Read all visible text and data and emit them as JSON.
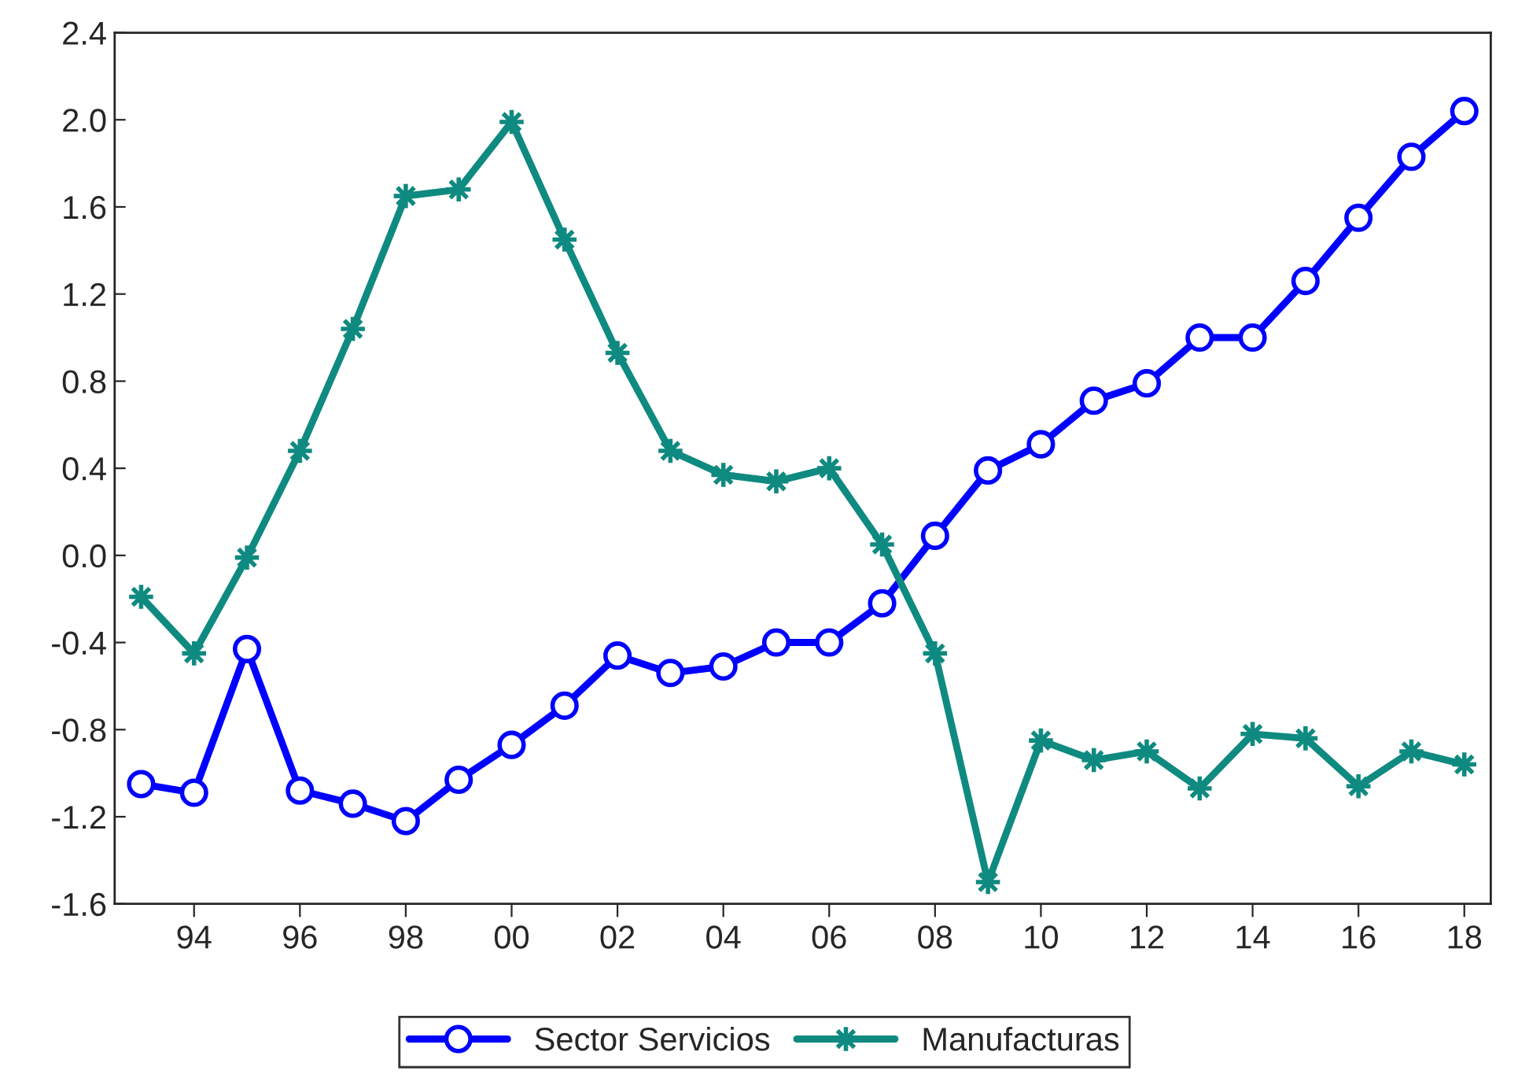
{
  "chart_data": {
    "type": "line",
    "x": [
      1993,
      1994,
      1995,
      1996,
      1997,
      1998,
      1999,
      2000,
      2001,
      2002,
      2003,
      2004,
      2005,
      2006,
      2007,
      2008,
      2009,
      2010,
      2011,
      2012,
      2013,
      2014,
      2015,
      2016,
      2017,
      2018
    ],
    "series": [
      {
        "name": "Sector Servicios",
        "color": "#0000ff",
        "marker": "circle",
        "values": [
          -1.05,
          -1.09,
          -0.43,
          -1.08,
          -1.14,
          -1.22,
          -1.03,
          -0.87,
          -0.69,
          -0.46,
          -0.54,
          -0.51,
          -0.4,
          -0.4,
          -0.22,
          0.09,
          0.39,
          0.51,
          0.71,
          0.79,
          1.0,
          1.0,
          1.26,
          1.55,
          1.83,
          2.04
        ]
      },
      {
        "name": "Manufacturas",
        "color": "#0f8a80",
        "marker": "star",
        "values": [
          -0.19,
          -0.45,
          -0.01,
          0.48,
          1.04,
          1.65,
          1.68,
          1.99,
          1.45,
          0.93,
          0.48,
          0.37,
          0.34,
          0.4,
          0.05,
          -0.45,
          -1.5,
          -0.85,
          -0.94,
          -0.9,
          -1.07,
          -0.82,
          -0.84,
          -1.06,
          -0.9,
          -0.96
        ]
      }
    ],
    "xlim": [
      1992.5,
      2018.5
    ],
    "xticks": [
      {
        "value": 1994,
        "label": "94"
      },
      {
        "value": 1996,
        "label": "96"
      },
      {
        "value": 1998,
        "label": "98"
      },
      {
        "value": 2000,
        "label": "00"
      },
      {
        "value": 2002,
        "label": "02"
      },
      {
        "value": 2004,
        "label": "04"
      },
      {
        "value": 2006,
        "label": "06"
      },
      {
        "value": 2008,
        "label": "08"
      },
      {
        "value": 2010,
        "label": "10"
      },
      {
        "value": 2012,
        "label": "12"
      },
      {
        "value": 2014,
        "label": "14"
      },
      {
        "value": 2016,
        "label": "16"
      },
      {
        "value": 2018,
        "label": "18"
      }
    ],
    "ylim": [
      -1.6,
      2.4
    ],
    "yticks": [
      {
        "value": -1.6,
        "label": "-1.6"
      },
      {
        "value": -1.2,
        "label": "-1.2"
      },
      {
        "value": -0.8,
        "label": "-0.8"
      },
      {
        "value": -0.4,
        "label": "-0.4"
      },
      {
        "value": 0.0,
        "label": "0.0"
      },
      {
        "value": 0.4,
        "label": "0.4"
      },
      {
        "value": 0.8,
        "label": "0.8"
      },
      {
        "value": 1.2,
        "label": "1.2"
      },
      {
        "value": 1.6,
        "label": "1.6"
      },
      {
        "value": 2.0,
        "label": "2.0"
      },
      {
        "value": 2.4,
        "label": "2.4"
      }
    ],
    "grid": false,
    "legend": "bottom",
    "line_style": "solid"
  }
}
